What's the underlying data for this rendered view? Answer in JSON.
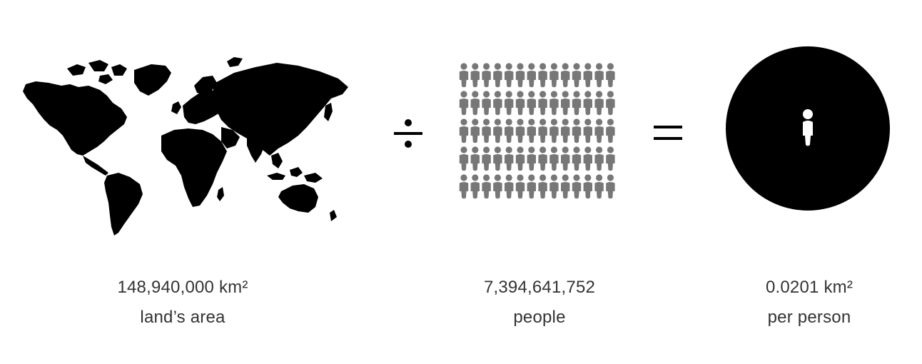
{
  "land": {
    "value": "148,940,000 km²",
    "caption": "land’s area",
    "icon": "world-map-icon"
  },
  "operator_divide": {
    "symbol": "÷",
    "icon": "divide-icon"
  },
  "people": {
    "value": "7,394,641,752",
    "caption": "people",
    "icon": "people-grid-icon",
    "grid_rows": 5,
    "grid_columns": 14,
    "color": "#777777"
  },
  "operator_equals": {
    "symbol": "=",
    "icon": "equals-icon"
  },
  "result": {
    "value": "0.0201 km²",
    "caption": "per person",
    "icon": "person-in-circle-icon"
  },
  "colors": {
    "ink": "#000000",
    "text": "#333333",
    "people": "#777777",
    "background": "#ffffff"
  }
}
